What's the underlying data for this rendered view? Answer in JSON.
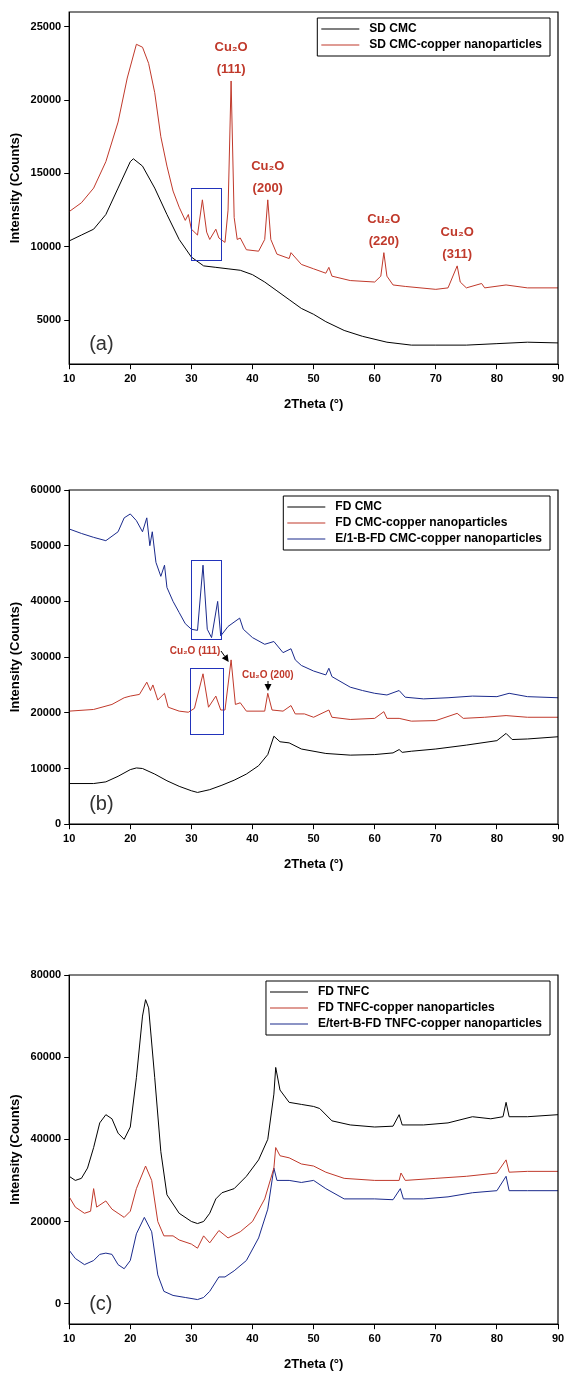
{
  "chart_data": [
    {
      "type": "line",
      "xlabel": "2Theta (°)",
      "ylabel": "Intensity (Counts)",
      "xlim": [
        10,
        90
      ],
      "xticks": [
        10,
        20,
        30,
        40,
        50,
        60,
        70,
        80,
        90
      ],
      "ylim": [
        2000,
        26000
      ],
      "yticks": [
        5000,
        10000,
        15000,
        20000,
        25000
      ],
      "grid": false,
      "legend": "top right",
      "series": [
        {
          "name": "SD CMC",
          "color": "#000000",
          "x": [
            10,
            12,
            14,
            16,
            18,
            20,
            20.5,
            22,
            24,
            26,
            28,
            30,
            32,
            34,
            36,
            38,
            40,
            42,
            44,
            46,
            48,
            50,
            52,
            55,
            58,
            62,
            66,
            70,
            75,
            80,
            85,
            90
          ],
          "values": [
            10400,
            10800,
            11200,
            12200,
            14000,
            15800,
            16000,
            15500,
            14000,
            12200,
            10500,
            9300,
            8700,
            8600,
            8500,
            8400,
            8100,
            7600,
            7000,
            6400,
            5800,
            5400,
            4900,
            4300,
            3900,
            3500,
            3300,
            3300,
            3300,
            3400,
            3500,
            3450
          ]
        },
        {
          "name": "SD CMC-copper nanoparticles",
          "color": "#c0392b",
          "x": [
            10,
            12,
            14,
            16,
            18,
            19.5,
            21,
            22,
            23,
            24,
            25,
            26,
            27,
            28,
            29,
            29.5,
            30,
            31,
            31.8,
            32.5,
            33,
            34,
            34.5,
            35.5,
            36,
            36.5,
            37,
            37.5,
            38,
            39,
            41,
            42,
            42.5,
            43,
            44,
            46,
            46.3,
            48,
            50,
            52,
            52.5,
            53,
            56,
            60,
            61,
            61.5,
            62,
            63,
            65,
            70,
            72,
            73.5,
            74,
            75,
            77.5,
            78,
            81.5,
            85,
            90
          ],
          "values": [
            12400,
            13000,
            14000,
            15800,
            18500,
            21500,
            23800,
            23600,
            22500,
            20500,
            17500,
            15500,
            13800,
            12700,
            11800,
            12200,
            11200,
            10800,
            13200,
            11000,
            10500,
            11200,
            10600,
            10300,
            12500,
            21300,
            12000,
            10500,
            10600,
            9800,
            9700,
            10500,
            13200,
            10500,
            9500,
            9200,
            9600,
            8800,
            8500,
            8200,
            8600,
            8000,
            7700,
            7600,
            8000,
            9600,
            8000,
            7400,
            7300,
            7100,
            7200,
            8700,
            7600,
            7200,
            7500,
            7200,
            7400,
            7200,
            7200
          ]
        }
      ],
      "annotations": [
        {
          "text": "Cu₂O (111)",
          "x": 36.5,
          "y": 21300
        },
        {
          "text": "Cu₂O (200)",
          "x": 42.5,
          "y": 13200
        },
        {
          "text": "Cu₂O (220)",
          "x": 61.5,
          "y": 9600
        },
        {
          "text": "Cu₂O (311)",
          "x": 73.5,
          "y": 8700
        },
        "(a)"
      ]
    },
    {
      "type": "line",
      "xlabel": "2Theta (°)",
      "ylabel": "Intensity (Counts)",
      "xlim": [
        10,
        90
      ],
      "xticks": [
        10,
        20,
        30,
        40,
        50,
        60,
        70,
        80,
        90
      ],
      "ylim": [
        0,
        60000
      ],
      "yticks": [
        0,
        10000,
        20000,
        30000,
        40000,
        50000,
        60000
      ],
      "grid": false,
      "legend": "top right",
      "series": [
        {
          "name": "FD CMC",
          "color": "#000000",
          "x": [
            10,
            14,
            16,
            18,
            20,
            21,
            22,
            24,
            26,
            28,
            30,
            31,
            33,
            35,
            37,
            39,
            41,
            42.5,
            43.5,
            44.5,
            46,
            48,
            52,
            56,
            60,
            63,
            64,
            64.5,
            66,
            70,
            75,
            80,
            81.5,
            82.5,
            85,
            90
          ],
          "values": [
            7300,
            7300,
            7600,
            8600,
            9800,
            10100,
            10000,
            9000,
            7800,
            6800,
            6000,
            5700,
            6200,
            7000,
            7900,
            9000,
            10500,
            12500,
            15800,
            14800,
            14600,
            13500,
            12700,
            12400,
            12500,
            12800,
            13400,
            12900,
            13100,
            13500,
            14200,
            15000,
            16300,
            15200,
            15300,
            15700
          ]
        },
        {
          "name": "FD CMC-copper nanoparticles",
          "color": "#c0392b",
          "x": [
            10,
            14,
            17,
            19,
            20,
            21.5,
            22.7,
            23.3,
            23.7,
            24.5,
            25.6,
            26.2,
            28,
            29.5,
            30.5,
            31.9,
            32.8,
            34,
            34.8,
            35.5,
            36.5,
            37.2,
            38,
            39,
            42,
            42.5,
            43.2,
            45,
            46.3,
            47,
            48.5,
            50,
            52.5,
            53,
            56,
            60,
            61.5,
            62,
            64,
            66,
            70,
            73.5,
            74.5,
            78,
            81.5,
            85,
            90
          ],
          "values": [
            20300,
            20600,
            21500,
            22700,
            23000,
            23300,
            25500,
            24000,
            25000,
            22300,
            23500,
            21000,
            20300,
            20100,
            20800,
            27000,
            21000,
            23000,
            20500,
            20500,
            29500,
            21500,
            21800,
            20300,
            20300,
            23500,
            20500,
            20300,
            21300,
            19800,
            19800,
            19200,
            20500,
            19200,
            18800,
            19000,
            20200,
            19000,
            19000,
            18500,
            18600,
            19900,
            19000,
            19200,
            19500,
            19200,
            19200
          ]
        },
        {
          "name": "E/1-B-FD CMC-copper nanoparticles",
          "color": "#1a2a8c",
          "x": [
            10,
            12,
            14,
            16,
            18,
            19,
            20,
            21,
            22,
            22.7,
            23.2,
            23.6,
            24.2,
            25,
            25.6,
            26,
            27,
            28,
            29,
            30,
            31,
            31.9,
            32.6,
            33.3,
            34.3,
            34.8,
            36,
            37.9,
            38.5,
            40,
            42,
            43.5,
            45,
            46.3,
            47,
            48,
            50,
            52,
            52.5,
            53,
            56,
            58,
            60,
            62,
            64,
            65,
            68,
            72,
            76,
            80,
            82,
            85,
            90
          ],
          "values": [
            53000,
            52200,
            51500,
            50900,
            52500,
            55000,
            55700,
            54500,
            52500,
            55000,
            50000,
            52500,
            47000,
            44500,
            46500,
            42500,
            40000,
            38000,
            36000,
            35000,
            34800,
            46500,
            35000,
            33500,
            40000,
            33800,
            35500,
            37000,
            35000,
            33500,
            32300,
            32800,
            30800,
            31500,
            29500,
            28500,
            27500,
            26800,
            28000,
            26500,
            24600,
            24000,
            23500,
            23200,
            24000,
            22800,
            22500,
            22700,
            23000,
            22900,
            23500,
            22900,
            22700
          ]
        }
      ],
      "annotations": [
        {
          "text": "Cu₂O (111)",
          "x": 36.5,
          "y": 29500
        },
        {
          "text": "Cu₂O (200)",
          "x": 42.5,
          "y": 23500
        },
        "(b)"
      ]
    },
    {
      "type": "line",
      "xlabel": "2Theta (°)",
      "ylabel": "Intensity (Counts)",
      "xlim": [
        10,
        90
      ],
      "xticks": [
        10,
        20,
        30,
        40,
        50,
        60,
        70,
        80,
        90
      ],
      "ylim": [
        -5000,
        80000
      ],
      "yticks": [
        0,
        20000,
        40000,
        60000,
        80000
      ],
      "grid": false,
      "legend": "top right",
      "series": [
        {
          "name": "FD TNFC",
          "color": "#000000",
          "x": [
            10,
            11,
            12,
            13,
            14,
            15,
            16,
            17,
            18,
            19,
            20,
            21,
            22,
            22.5,
            23,
            24,
            25,
            26,
            28,
            30,
            31,
            32,
            33,
            34,
            35,
            37,
            39,
            41,
            42.5,
            43.5,
            43.8,
            44.5,
            46,
            48,
            50,
            51,
            53,
            56,
            60,
            63,
            64,
            64.5,
            68,
            72,
            76,
            79,
            81,
            81.5,
            82,
            85,
            90
          ],
          "values": [
            31000,
            30000,
            30500,
            33000,
            38000,
            44000,
            46000,
            45000,
            41500,
            40000,
            43000,
            55000,
            70000,
            74000,
            72000,
            55000,
            37000,
            26500,
            22000,
            20000,
            19500,
            20000,
            22000,
            25500,
            27000,
            28000,
            31000,
            35000,
            40000,
            51000,
            57500,
            52000,
            49000,
            48500,
            48000,
            47500,
            44500,
            43500,
            43000,
            43200,
            46000,
            43500,
            43500,
            44000,
            45500,
            45000,
            45500,
            49000,
            45500,
            45500,
            46000
          ]
        },
        {
          "name": "FD TNFC-copper nanoparticles",
          "color": "#c0392b",
          "x": [
            10,
            11,
            12.5,
            13.5,
            14,
            14.5,
            16,
            17,
            18,
            19,
            20,
            21,
            22.5,
            23.5,
            24.5,
            25.5,
            27,
            28,
            30,
            31,
            32,
            33,
            34.5,
            36,
            38,
            40,
            42,
            43.5,
            43.8,
            44.5,
            46,
            48,
            50,
            52,
            55,
            60,
            64,
            64.3,
            65,
            70,
            75,
            80,
            81.5,
            82,
            85,
            90
          ],
          "values": [
            26000,
            23500,
            22000,
            22500,
            28000,
            23500,
            25000,
            23000,
            22000,
            21000,
            22500,
            28000,
            33500,
            30000,
            20000,
            16500,
            16500,
            15500,
            14500,
            13500,
            16500,
            14800,
            17800,
            16000,
            17500,
            20000,
            25500,
            33000,
            38000,
            36000,
            35500,
            34000,
            33500,
            32000,
            30500,
            30000,
            30000,
            31800,
            30000,
            30500,
            31000,
            31800,
            35000,
            32000,
            32200,
            32200
          ]
        },
        {
          "name": "E/tert-B-FD TNFC-copper nanoparticles",
          "color": "#1a2a8c",
          "x": [
            10,
            11,
            12.5,
            14,
            15,
            16,
            17,
            18,
            19,
            20,
            21,
            22.3,
            23.5,
            24.5,
            25.5,
            27,
            29,
            31,
            32,
            33,
            34.5,
            35.5,
            37,
            39,
            41,
            42.5,
            43.5,
            44,
            46,
            48,
            50,
            52,
            55,
            60,
            63,
            64.2,
            64.7,
            68,
            72,
            76,
            80,
            81.5,
            82,
            85,
            90
          ],
          "values": [
            13000,
            11000,
            9500,
            10500,
            12000,
            12300,
            12000,
            9500,
            8500,
            10500,
            17000,
            21000,
            17500,
            7000,
            3000,
            2000,
            1500,
            1000,
            1500,
            3000,
            6500,
            6500,
            8000,
            10500,
            16000,
            23000,
            33000,
            30000,
            30000,
            29500,
            30000,
            28000,
            25500,
            25500,
            25300,
            28000,
            25500,
            25500,
            26000,
            27000,
            27500,
            31000,
            27500,
            27500,
            27500
          ]
        }
      ],
      "annotations": [
        "(c)"
      ]
    }
  ]
}
